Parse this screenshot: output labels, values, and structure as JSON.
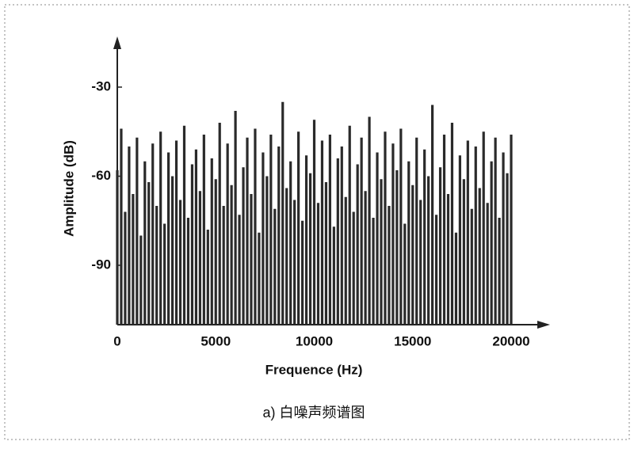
{
  "chart_data": {
    "type": "spectrum",
    "caption": "a) 白噪声频谱图",
    "x_label": "Frequence (Hz)",
    "y_label": "Amplitude (dB)",
    "xlim": [
      0,
      20000
    ],
    "xticks": [
      0,
      5000,
      10000,
      15000,
      20000
    ],
    "ylim": [
      -110,
      -20
    ],
    "yticks": [
      -30,
      -60,
      -90
    ],
    "color": "#2a2a2a",
    "x": [
      0,
      200,
      400,
      600,
      800,
      1000,
      1200,
      1400,
      1600,
      1800,
      2000,
      2200,
      2400,
      2600,
      2800,
      3000,
      3200,
      3400,
      3600,
      3800,
      4000,
      4200,
      4400,
      4600,
      4800,
      5000,
      5200,
      5400,
      5600,
      5800,
      6000,
      6200,
      6400,
      6600,
      6800,
      7000,
      7200,
      7400,
      7600,
      7800,
      8000,
      8200,
      8400,
      8600,
      8800,
      9000,
      9200,
      9400,
      9600,
      9800,
      10000,
      10200,
      10400,
      10600,
      10800,
      11000,
      11200,
      11400,
      11600,
      11800,
      12000,
      12200,
      12400,
      12600,
      12800,
      13000,
      13200,
      13400,
      13600,
      13800,
      14000,
      14200,
      14400,
      14600,
      14800,
      15000,
      15200,
      15400,
      15600,
      15800,
      16000,
      16200,
      16400,
      16600,
      16800,
      17000,
      17200,
      17400,
      17600,
      17800,
      18000,
      18200,
      18400,
      18600,
      18800,
      19000,
      19200,
      19400,
      19600,
      19800,
      20000
    ],
    "values": [
      -58,
      -44,
      -72,
      -50,
      -66,
      -47,
      -80,
      -55,
      -62,
      -49,
      -70,
      -45,
      -76,
      -52,
      -60,
      -48,
      -68,
      -43,
      -74,
      -56,
      -51,
      -65,
      -46,
      -78,
      -54,
      -61,
      -42,
      -70,
      -49,
      -63,
      -38,
      -73,
      -57,
      -47,
      -66,
      -44,
      -79,
      -52,
      -60,
      -46,
      -71,
      -50,
      -35,
      -64,
      -55,
      -68,
      -45,
      -75,
      -53,
      -59,
      -41,
      -69,
      -48,
      -62,
      -46,
      -77,
      -54,
      -50,
      -67,
      -43,
      -72,
      -56,
      -47,
      -65,
      -40,
      -74,
      -52,
      -61,
      -45,
      -70,
      -49,
      -58,
      -44,
      -76,
      -55,
      -63,
      -47,
      -68,
      -51,
      -60,
      -36,
      -73,
      -57,
      -46,
      -66,
      -42,
      -79,
      -53,
      -61,
      -48,
      -71,
      -50,
      -64,
      -45,
      -69,
      -55,
      -47,
      -74,
      -52,
      -59,
      -46
    ]
  }
}
